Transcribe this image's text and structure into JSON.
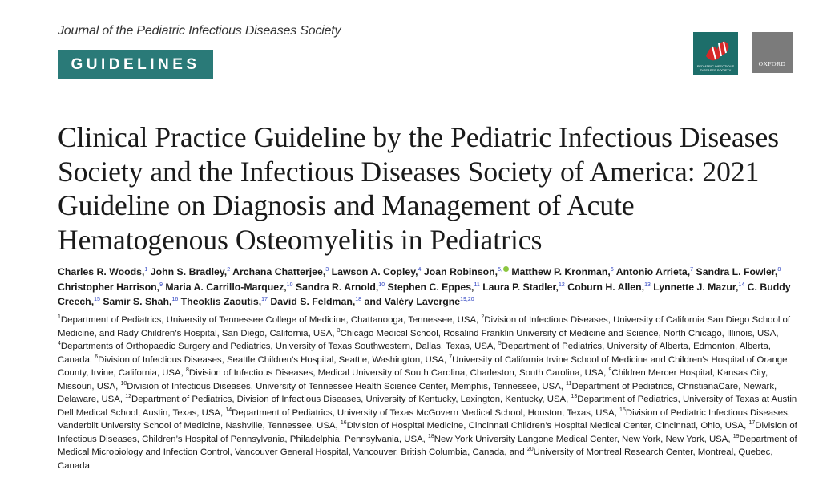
{
  "header": {
    "journal": "Journal of the Pediatric Infectious Diseases Society",
    "section": "GUIDELINES",
    "pids_logo_text": [
      "PEDIATRIC INFECTIOUS",
      "DISEASES SOCIETY"
    ],
    "oxford_logo_text": "OXFORD",
    "colors": {
      "banner": "#2a7a78",
      "pids_logo_bg": "#1d6e6a",
      "pids_logo_mark": "#d62828",
      "oxford_bg": "#7b7b7b",
      "superscript": "#2a3fc0",
      "orcid": "#8cc63f"
    }
  },
  "title": "Clinical Practice Guideline by the Pediatric Infectious Diseases Society and the Infectious Diseases Society of America: 2021 Guideline on Diagnosis and Management of Acute Hematogenous Osteomyelitis in Pediatrics",
  "authors": [
    {
      "name": "Charles R. Woods,",
      "sup": "1"
    },
    {
      "name": "John S. Bradley,",
      "sup": "2"
    },
    {
      "name": "Archana Chatterjee,",
      "sup": "3"
    },
    {
      "name": "Lawson A. Copley,",
      "sup": "4"
    },
    {
      "name": "Joan Robinson,",
      "sup": "5,",
      "orcid": true
    },
    {
      "name": "Matthew P. Kronman,",
      "sup": "6"
    },
    {
      "name": "Antonio Arrieta,",
      "sup": "7"
    },
    {
      "name": "Sandra L. Fowler,",
      "sup": "8"
    },
    {
      "name": "Christopher Harrison,",
      "sup": "9"
    },
    {
      "name": "Maria A. Carrillo-Marquez,",
      "sup": "10"
    },
    {
      "name": "Sandra R. Arnold,",
      "sup": "10"
    },
    {
      "name": "Stephen C. Eppes,",
      "sup": "11"
    },
    {
      "name": "Laura P. Stadler,",
      "sup": "12"
    },
    {
      "name": "Coburn H. Allen,",
      "sup": "13"
    },
    {
      "name": "Lynnette J. Mazur,",
      "sup": "14"
    },
    {
      "name": "C. Buddy Creech,",
      "sup": "15"
    },
    {
      "name": "Samir S. Shah,",
      "sup": "16"
    },
    {
      "name": "Theoklis Zaoutis,",
      "sup": "17"
    },
    {
      "name": "David S. Feldman,",
      "sup": "18"
    },
    {
      "name": "and Valéry Lavergne",
      "sup": "19,20"
    }
  ],
  "affiliations": [
    {
      "sup": "1",
      "text": "Department of Pediatrics, University of Tennessee College of Medicine, Chattanooga, Tennessee, USA, "
    },
    {
      "sup": "2",
      "text": "Division of Infectious Diseases, University of California San Diego School of Medicine, and Rady Children’s Hospital, San Diego, California, USA, "
    },
    {
      "sup": "3",
      "text": "Chicago Medical School, Rosalind Franklin University of Medicine and Science, North Chicago, Illinois, USA, "
    },
    {
      "sup": "4",
      "text": "Departments of Orthopaedic Surgery and Pediatrics, University of Texas Southwestern, Dallas, Texas, USA, "
    },
    {
      "sup": "5",
      "text": "Department of Pediatrics, University of Alberta, Edmonton, Alberta, Canada, "
    },
    {
      "sup": "6",
      "text": "Division of Infectious Diseases, Seattle Children’s Hospital, Seattle, Washington, USA, "
    },
    {
      "sup": "7",
      "text": "University of California Irvine School of Medicine and Children’s Hospital of Orange County, Irvine, California, USA, "
    },
    {
      "sup": "8",
      "text": "Division of Infectious Diseases, Medical University of South Carolina, Charleston, South Carolina, USA, "
    },
    {
      "sup": "9",
      "text": "Children Mercer Hospital, Kansas City, Missouri, USA, "
    },
    {
      "sup": "10",
      "text": "Division of Infectious Diseases, University of Tennessee Health Science Center, Memphis, Tennessee, USA, "
    },
    {
      "sup": "11",
      "text": "Department of Pediatrics, ChristianaCare, Newark, Delaware, USA, "
    },
    {
      "sup": "12",
      "text": "Department of Pediatrics, Division of Infectious Diseases, University of Kentucky, Lexington, Kentucky, USA, "
    },
    {
      "sup": "13",
      "text": "Department of Pediatrics, University of Texas at Austin Dell Medical School, Austin, Texas, USA, "
    },
    {
      "sup": "14",
      "text": "Department of Pediatrics, University of Texas McGovern Medical School, Houston, Texas, USA, "
    },
    {
      "sup": "15",
      "text": "Division of Pediatric Infectious Diseases, Vanderbilt University School of Medicine, Nashville, Tennessee, USA, "
    },
    {
      "sup": "16",
      "text": "Division of Hospital Medicine, Cincinnati Children’s Hospital Medical Center, Cincinnati, Ohio, USA, "
    },
    {
      "sup": "17",
      "text": "Division of Infectious Diseases, Children’s Hospital of Pennsylvania, Philadelphia, Pennsylvania, USA, "
    },
    {
      "sup": "18",
      "text": "New York University Langone Medical Center, New York, New York, USA, "
    },
    {
      "sup": "19",
      "text": "Department of Medical Microbiology and Infection Control, Vancouver General Hospital, Vancouver, British Columbia, Canada, and "
    },
    {
      "sup": "20",
      "text": "University of Montreal Research Center, Montreal, Quebec, Canada"
    }
  ]
}
